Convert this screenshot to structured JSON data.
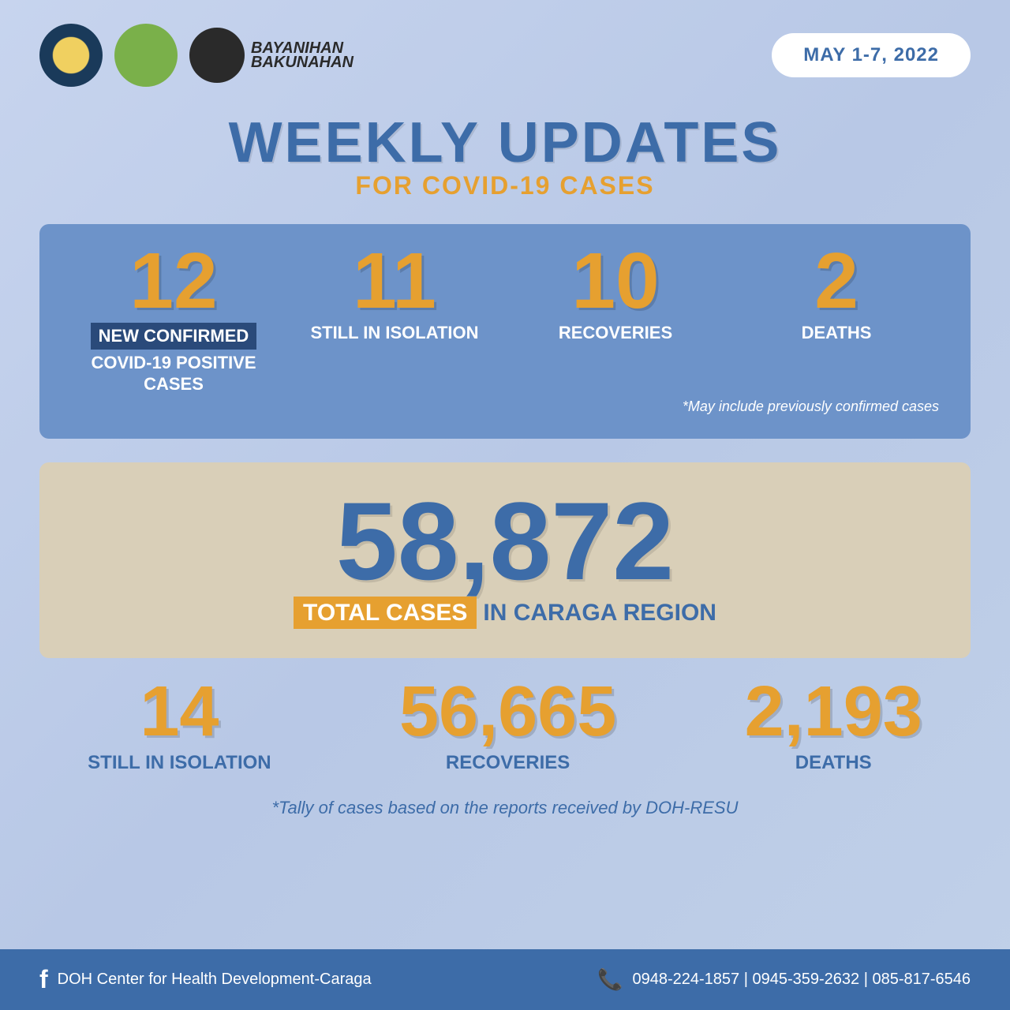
{
  "header": {
    "date_range": "MAY 1-7, 2022",
    "logo3_line1": "BAYANIHAN",
    "logo3_line2": "BAKUNAHAN"
  },
  "title": {
    "main": "WEEKLY UPDATES",
    "sub": "FOR COVID-19 CASES"
  },
  "weekly_stats": [
    {
      "value": "12",
      "label_bg": "NEW CONFIRMED",
      "label_rest": "COVID-19 POSITIVE CASES"
    },
    {
      "value": "11",
      "label_rest": "STILL IN ISOLATION"
    },
    {
      "value": "10",
      "label_rest": "RECOVERIES"
    },
    {
      "value": "2",
      "label_rest": "DEATHS"
    }
  ],
  "weekly_footnote": "*May include previously confirmed cases",
  "total": {
    "value": "58,872",
    "label_hl": "TOTAL CASES",
    "label_rest": "IN CARAGA REGION"
  },
  "cumulative_stats": [
    {
      "value": "14",
      "label": "STILL IN ISOLATION"
    },
    {
      "value": "56,665",
      "label": "RECOVERIES"
    },
    {
      "value": "2,193",
      "label": "DEATHS"
    }
  ],
  "tally_note": "*Tally of cases based on the reports received by DOH-RESU",
  "footer": {
    "org": "DOH Center for Health Development-Caraga",
    "phones": "0948-224-1857 | 0945-359-2632 | 085-817-6546"
  },
  "colors": {
    "primary_blue": "#3d6ca8",
    "accent_orange": "#e6a030",
    "panel_blue": "#6d93c9",
    "panel_tan": "#d9cfb8",
    "dark_blue": "#2a4a7a"
  }
}
